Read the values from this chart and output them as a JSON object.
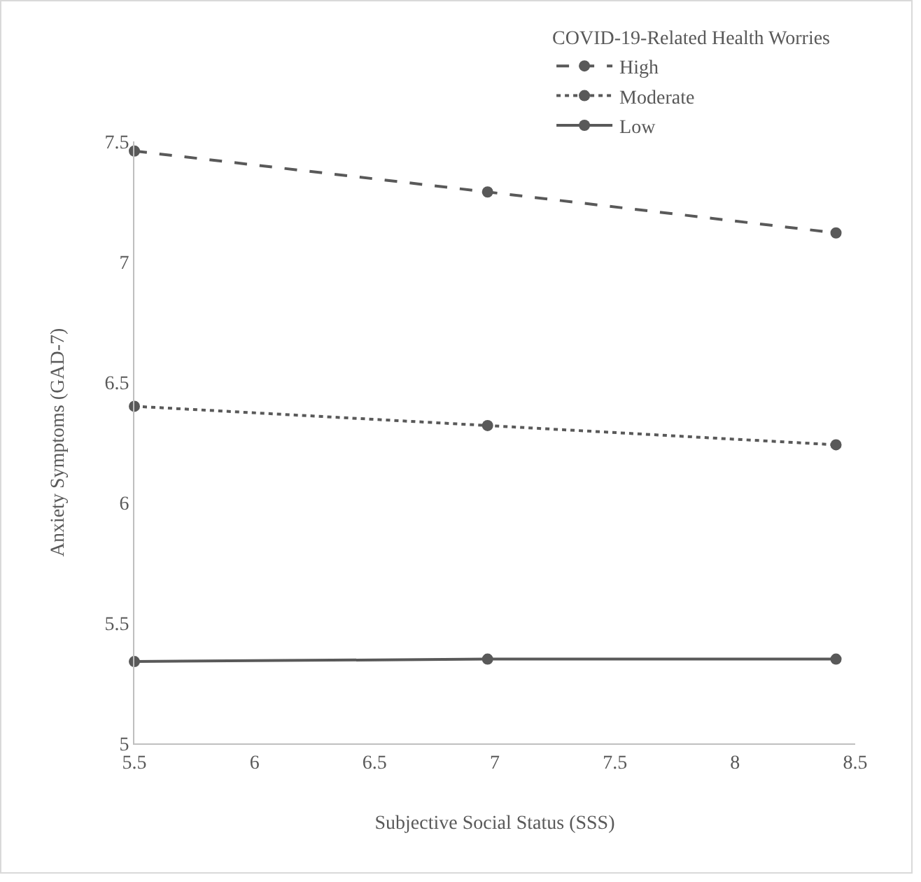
{
  "chart_data": {
    "type": "line",
    "xlabel": "Subjective Social Status (SSS)",
    "ylabel": "Anxiety Symptoms (GAD-7)",
    "legend_title": "COVID-19-Related Health Worries",
    "x": [
      5.5,
      6.97,
      8.42
    ],
    "series": [
      {
        "name": "High",
        "color": "#595959",
        "line_style": "dashed",
        "values": [
          7.46,
          7.29,
          7.12
        ]
      },
      {
        "name": "Moderate",
        "color": "#595959",
        "line_style": "dotted",
        "values": [
          6.4,
          6.32,
          6.24
        ]
      },
      {
        "name": "Low",
        "color": "#595959",
        "line_style": "solid",
        "values": [
          5.34,
          5.35,
          5.35
        ]
      }
    ],
    "xlim": [
      5.5,
      8.5
    ],
    "xticks": [
      5.5,
      6,
      6.5,
      7,
      7.5,
      8,
      8.5
    ],
    "ylim": [
      5,
      7.5
    ],
    "yticks": [
      5,
      5.5,
      6,
      6.5,
      7,
      7.5
    ],
    "grid": false,
    "legend": "top right",
    "marker": "circle"
  }
}
